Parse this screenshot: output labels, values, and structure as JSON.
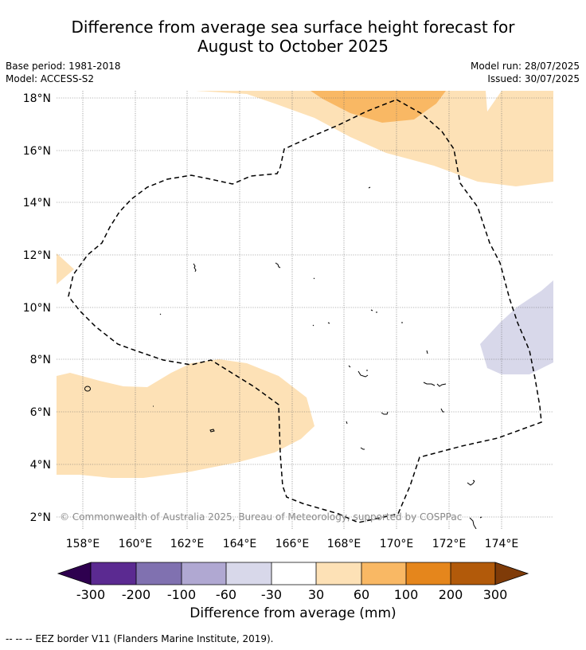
{
  "header": {
    "title_line1": "Difference from average sea surface height forecast for",
    "title_line2": "August to October 2025",
    "base_period": "Base period: 1981-2018",
    "model": "Model: ACCESS-S2",
    "model_run": "Model run: 28/07/2025",
    "issued": "Issued: 30/07/2025"
  },
  "map": {
    "lat_labels": [
      "18°N",
      "16°N",
      "14°N",
      "12°N",
      "10°N",
      "8°N",
      "6°N",
      "4°N",
      "2°N"
    ],
    "lon_labels": [
      "158°E",
      "160°E",
      "162°E",
      "164°E",
      "166°E",
      "168°E",
      "170°E",
      "172°E",
      "174°E"
    ],
    "copyright": "© Commonwealth of Australia 2025, Bureau of Meteorology, supported by COSPPac",
    "eez_line_style": "dashed"
  },
  "colorbar": {
    "tick_labels": [
      "-300",
      "-200",
      "-100",
      "-60",
      "-30",
      "30",
      "60",
      "100",
      "200",
      "300"
    ],
    "colors": [
      "#2e004f",
      "#5b2a91",
      "#8071b0",
      "#b0a8d2",
      "#d8d8ea",
      "#ffffff",
      "#fde1b6",
      "#f9b864",
      "#e5861c",
      "#b25a0a",
      "#7f3b08"
    ],
    "label": "Difference from average (mm)"
  },
  "footnote": "--  --  -- EEZ border V11 (Flanders Marine Institute, 2019)."
}
